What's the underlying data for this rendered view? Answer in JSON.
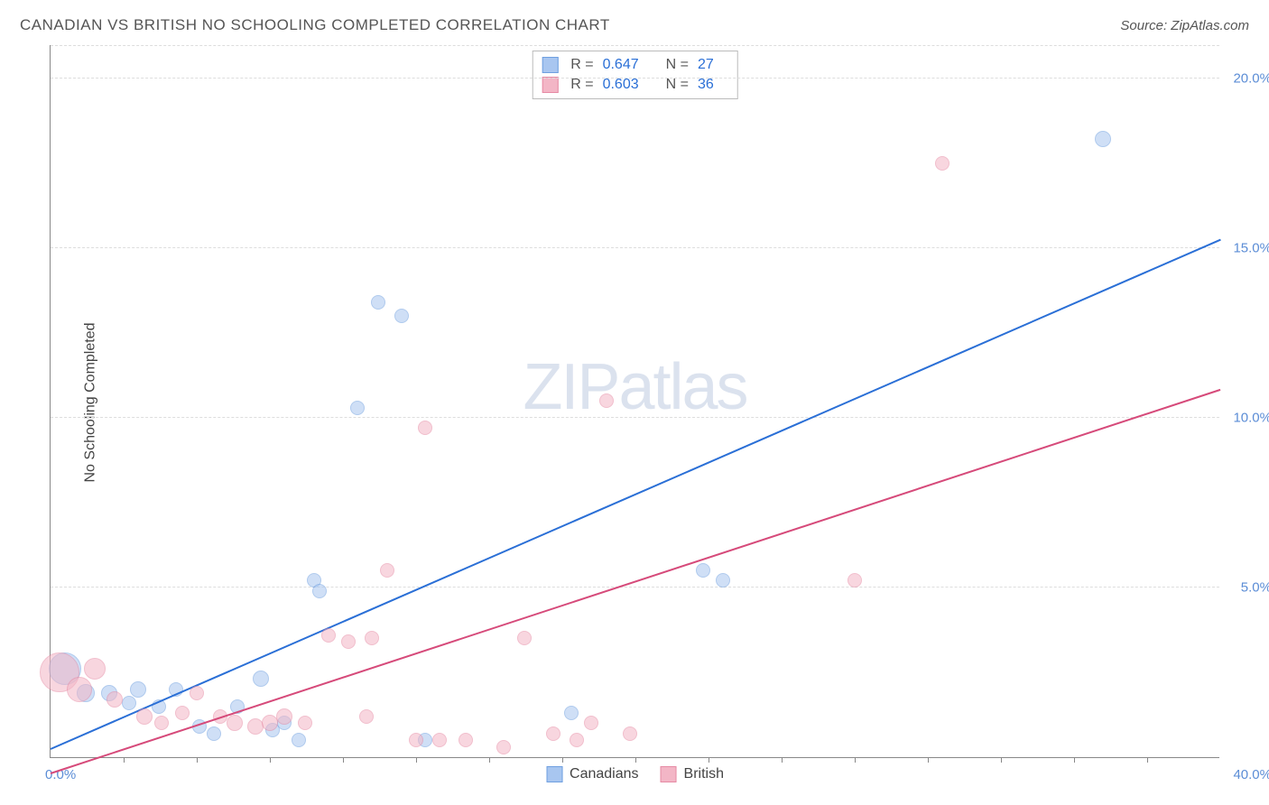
{
  "header": {
    "title": "CANADIAN VS BRITISH NO SCHOOLING COMPLETED CORRELATION CHART",
    "source_prefix": "Source: ",
    "source_name": "ZipAtlas.com"
  },
  "chart": {
    "type": "scatter",
    "ylabel": "No Schooling Completed",
    "background_color": "#ffffff",
    "grid_color": "#dddddd",
    "axis_color": "#888888",
    "tick_label_color": "#5b8dd6",
    "xlim": [
      0,
      40
    ],
    "ylim": [
      0,
      21
    ],
    "xtick_step": 2.5,
    "xtick_labels": {
      "start": "0.0%",
      "end": "40.0%"
    },
    "yticks": [
      {
        "value": 5.0,
        "label": "5.0%"
      },
      {
        "value": 10.0,
        "label": "10.0%"
      },
      {
        "value": 15.0,
        "label": "15.0%"
      },
      {
        "value": 20.0,
        "label": "20.0%"
      }
    ],
    "watermark": {
      "part1": "ZIP",
      "part2": "atlas",
      "color": "#ccd6e8"
    },
    "series": [
      {
        "id": "canadians",
        "label": "Canadians",
        "fill_color": "#a8c6f0",
        "stroke_color": "#6f9fe0",
        "line_color": "#2a6fd6",
        "R": 0.647,
        "N": 27,
        "trend": {
          "x1": 0,
          "y1": 0.2,
          "x2": 40,
          "y2": 15.2
        },
        "points": [
          {
            "x": 0.5,
            "y": 2.6,
            "r": 18
          },
          {
            "x": 1.2,
            "y": 1.9,
            "r": 10
          },
          {
            "x": 2.0,
            "y": 1.9,
            "r": 9
          },
          {
            "x": 2.7,
            "y": 1.6,
            "r": 8
          },
          {
            "x": 3.0,
            "y": 2.0,
            "r": 9
          },
          {
            "x": 3.7,
            "y": 1.5,
            "r": 8
          },
          {
            "x": 4.3,
            "y": 2.0,
            "r": 8
          },
          {
            "x": 5.1,
            "y": 0.9,
            "r": 8
          },
          {
            "x": 5.6,
            "y": 0.7,
            "r": 8
          },
          {
            "x": 6.4,
            "y": 1.5,
            "r": 8
          },
          {
            "x": 7.2,
            "y": 2.3,
            "r": 9
          },
          {
            "x": 7.6,
            "y": 0.8,
            "r": 8
          },
          {
            "x": 8.0,
            "y": 1.0,
            "r": 8
          },
          {
            "x": 8.5,
            "y": 0.5,
            "r": 8
          },
          {
            "x": 9.0,
            "y": 5.2,
            "r": 8
          },
          {
            "x": 9.2,
            "y": 4.9,
            "r": 8
          },
          {
            "x": 10.5,
            "y": 10.3,
            "r": 8
          },
          {
            "x": 11.2,
            "y": 13.4,
            "r": 8
          },
          {
            "x": 12.0,
            "y": 13.0,
            "r": 8
          },
          {
            "x": 12.8,
            "y": 0.5,
            "r": 8
          },
          {
            "x": 17.8,
            "y": 1.3,
            "r": 8
          },
          {
            "x": 22.3,
            "y": 5.5,
            "r": 8
          },
          {
            "x": 23.0,
            "y": 5.2,
            "r": 8
          },
          {
            "x": 36.0,
            "y": 18.2,
            "r": 9
          }
        ]
      },
      {
        "id": "british",
        "label": "British",
        "fill_color": "#f3b6c6",
        "stroke_color": "#e68aa4",
        "line_color": "#d64a7a",
        "R": 0.603,
        "N": 36,
        "trend": {
          "x1": 0,
          "y1": -0.5,
          "x2": 40,
          "y2": 10.8
        },
        "points": [
          {
            "x": 0.3,
            "y": 2.5,
            "r": 22
          },
          {
            "x": 1.0,
            "y": 2.0,
            "r": 14
          },
          {
            "x": 1.5,
            "y": 2.6,
            "r": 12
          },
          {
            "x": 2.2,
            "y": 1.7,
            "r": 9
          },
          {
            "x": 3.2,
            "y": 1.2,
            "r": 9
          },
          {
            "x": 3.8,
            "y": 1.0,
            "r": 8
          },
          {
            "x": 4.5,
            "y": 1.3,
            "r": 8
          },
          {
            "x": 5.0,
            "y": 1.9,
            "r": 8
          },
          {
            "x": 5.8,
            "y": 1.2,
            "r": 8
          },
          {
            "x": 6.3,
            "y": 1.0,
            "r": 9
          },
          {
            "x": 7.0,
            "y": 0.9,
            "r": 9
          },
          {
            "x": 7.5,
            "y": 1.0,
            "r": 9
          },
          {
            "x": 8.0,
            "y": 1.2,
            "r": 9
          },
          {
            "x": 8.7,
            "y": 1.0,
            "r": 8
          },
          {
            "x": 9.5,
            "y": 3.6,
            "r": 8
          },
          {
            "x": 10.2,
            "y": 3.4,
            "r": 8
          },
          {
            "x": 10.8,
            "y": 1.2,
            "r": 8
          },
          {
            "x": 11.0,
            "y": 3.5,
            "r": 8
          },
          {
            "x": 11.5,
            "y": 5.5,
            "r": 8
          },
          {
            "x": 12.5,
            "y": 0.5,
            "r": 8
          },
          {
            "x": 12.8,
            "y": 9.7,
            "r": 8
          },
          {
            "x": 13.3,
            "y": 0.5,
            "r": 8
          },
          {
            "x": 14.2,
            "y": 0.5,
            "r": 8
          },
          {
            "x": 15.5,
            "y": 0.3,
            "r": 8
          },
          {
            "x": 16.2,
            "y": 3.5,
            "r": 8
          },
          {
            "x": 17.2,
            "y": 0.7,
            "r": 8
          },
          {
            "x": 18.0,
            "y": 0.5,
            "r": 8
          },
          {
            "x": 18.5,
            "y": 1.0,
            "r": 8
          },
          {
            "x": 19.0,
            "y": 10.5,
            "r": 8
          },
          {
            "x": 19.8,
            "y": 0.7,
            "r": 8
          },
          {
            "x": 27.5,
            "y": 5.2,
            "r": 8
          },
          {
            "x": 30.5,
            "y": 17.5,
            "r": 8
          }
        ]
      }
    ],
    "legend_bottom": [
      {
        "label": "Canadians",
        "color": "#a8c6f0",
        "border": "#6f9fe0"
      },
      {
        "label": "British",
        "color": "#f3b6c6",
        "border": "#e68aa4"
      }
    ]
  }
}
